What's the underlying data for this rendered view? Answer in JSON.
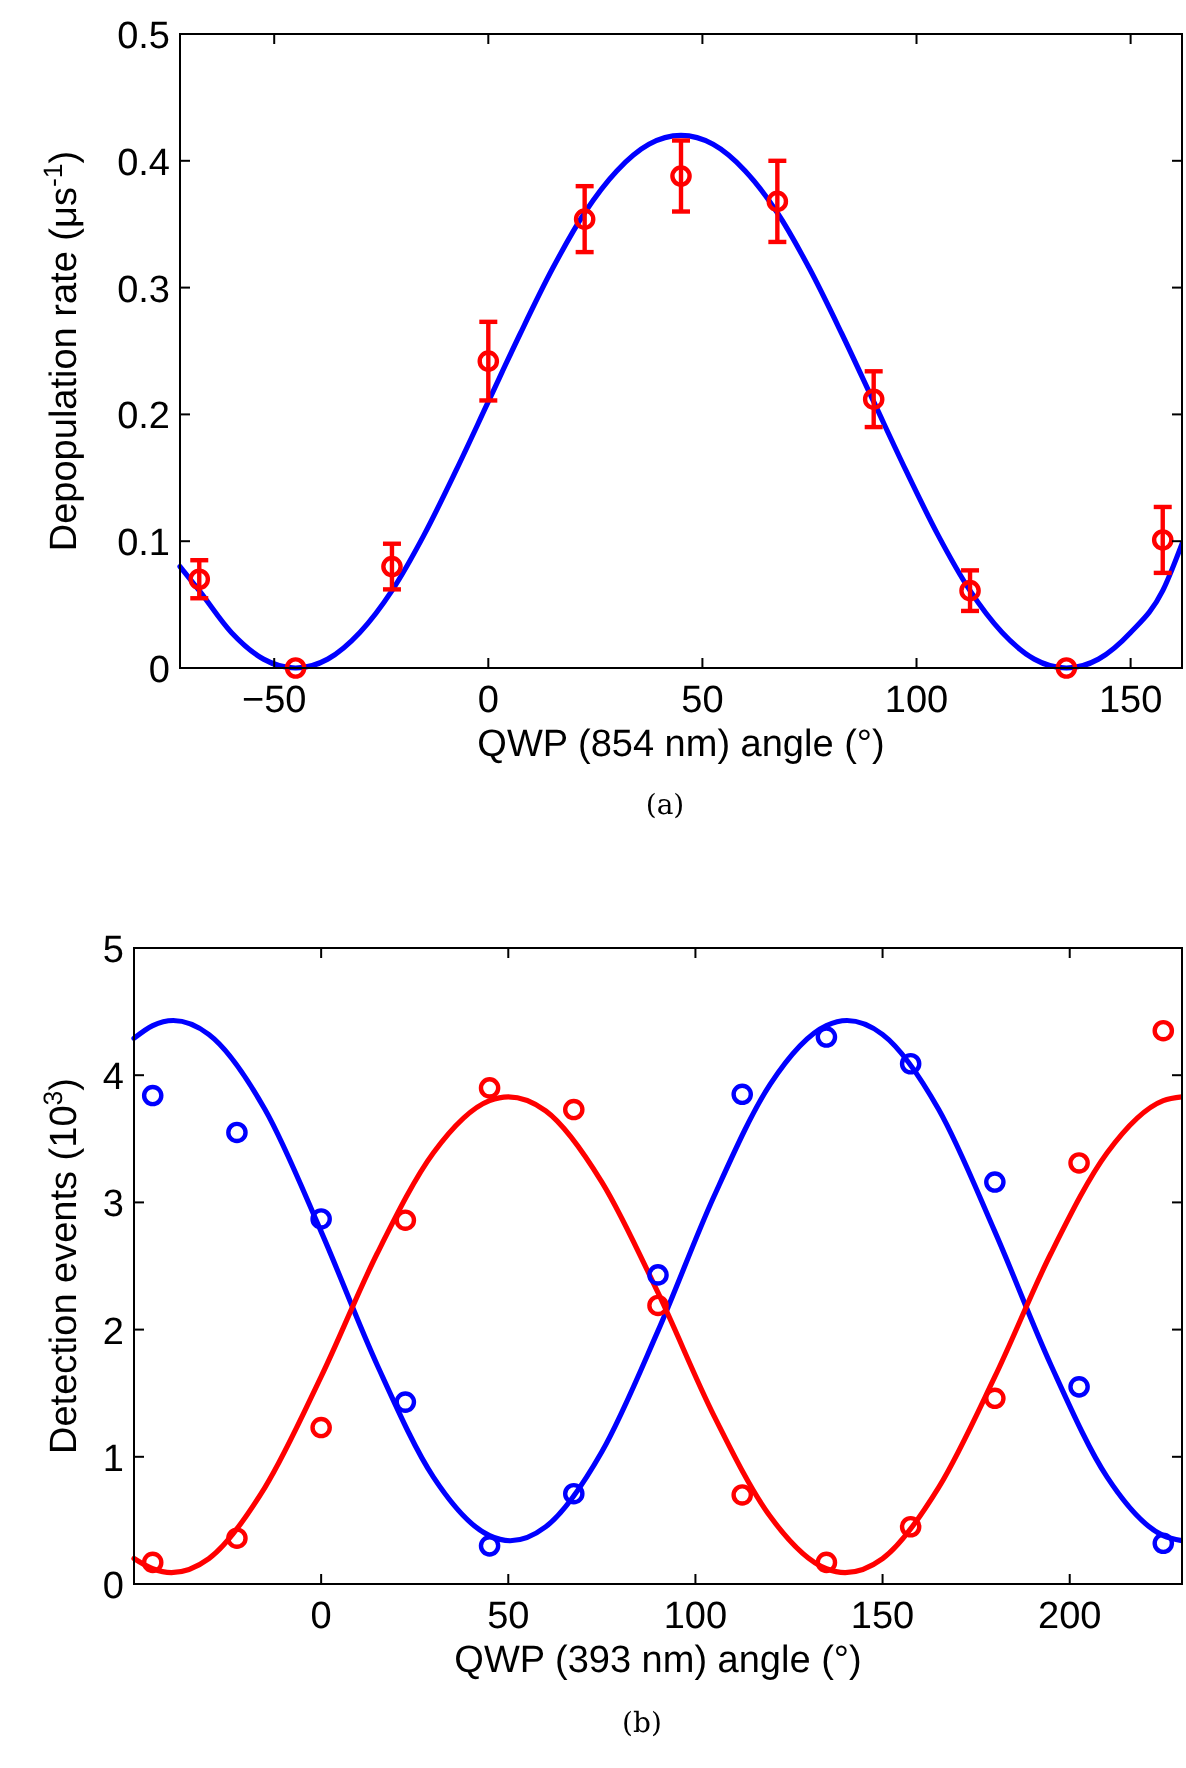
{
  "chart_data": [
    {
      "type": "scatter",
      "xlabel": "QWP (854 nm) angle (°)",
      "ylabel": "Depopulation rate (μs$^{-1}$)",
      "annotations": [
        "(a)"
      ],
      "xlim": [
        -72,
        162
      ],
      "xticks": [
        -50,
        0,
        50,
        100,
        150
      ],
      "ylim": [
        0,
        0.5
      ],
      "yticks": [
        0,
        0.1,
        0.2,
        0.3,
        0.4,
        0.5
      ],
      "series": [
        {
          "type": "line",
          "color": "#0000ff",
          "line_style": "solid",
          "marker": "none",
          "x": [
            -72,
            -67.5,
            -60,
            -52.5,
            -45,
            -37.5,
            -30,
            -22.5,
            -15,
            -7.5,
            0,
            7.5,
            15,
            22.5,
            30,
            37.5,
            45,
            52.5,
            60,
            67.5,
            75,
            82.5,
            90,
            97.5,
            105,
            112.5,
            120,
            127.5,
            135,
            142.5,
            150,
            157.5,
            162
          ],
          "values": [
            0.08,
            0.061,
            0.028,
            0.007,
            0,
            0.007,
            0.028,
            0.061,
            0.105,
            0.156,
            0.21,
            0.264,
            0.315,
            0.359,
            0.392,
            0.413,
            0.42,
            0.413,
            0.392,
            0.359,
            0.315,
            0.264,
            0.21,
            0.156,
            0.105,
            0.061,
            0.028,
            0.007,
            0,
            0.007,
            0.028,
            0.061,
            0.098
          ]
        },
        {
          "color": "#ff0000",
          "marker": "circle",
          "x": [
            -67.5,
            -45,
            -22.5,
            0,
            22.5,
            45,
            67.5,
            90,
            112.5,
            135,
            157.5
          ],
          "values": [
            0.07,
            0,
            0.08,
            0.242,
            0.354,
            0.388,
            0.368,
            0.212,
            0.061,
            0,
            0.101
          ],
          "errors": [
            0.015,
            null,
            0.018,
            0.031,
            0.026,
            0.028,
            0.032,
            0.022,
            0.016,
            null,
            0.026
          ]
        }
      ]
    },
    {
      "type": "scatter",
      "xlabel": "QWP (393 nm) angle (°)",
      "ylabel": "Detection events (10$^{3}$)",
      "annotations": [
        "(b)"
      ],
      "xlim": [
        -50,
        230
      ],
      "xticks": [
        0,
        50,
        100,
        150,
        200
      ],
      "ylim": [
        0,
        5
      ],
      "yticks": [
        0,
        1,
        2,
        3,
        4,
        5
      ],
      "series": [
        {
          "type": "line",
          "color": "#0000ff",
          "line_style": "solid",
          "marker": "none",
          "x": [
            -50,
            -45,
            -39.5,
            -30,
            -15,
            0,
            15,
            30,
            45,
            50.5,
            60,
            75,
            90,
            105,
            120,
            135,
            140.5,
            150,
            165,
            180,
            195,
            210,
            225,
            230
          ],
          "values": [
            4.29,
            4.39,
            4.43,
            4.32,
            3.73,
            2.77,
            1.72,
            0.84,
            0.38,
            0.34,
            0.45,
            1.04,
            1.99,
            3.05,
            3.93,
            4.39,
            4.43,
            4.32,
            3.73,
            2.77,
            1.72,
            0.84,
            0.38,
            0.34
          ]
        },
        {
          "type": "line",
          "color": "#ff0000",
          "line_style": "solid",
          "marker": "none",
          "x": [
            -50,
            -45,
            -40,
            -30,
            -15,
            0,
            15,
            30,
            45,
            50,
            60,
            75,
            90,
            105,
            120,
            135,
            140,
            150,
            165,
            180,
            195,
            210,
            225,
            230
          ],
          "values": [
            0.2,
            0.12,
            0.09,
            0.2,
            0.76,
            1.63,
            2.6,
            3.39,
            3.8,
            3.83,
            3.72,
            3.16,
            2.29,
            1.32,
            0.53,
            0.12,
            0.09,
            0.2,
            0.76,
            1.63,
            2.6,
            3.39,
            3.8,
            3.83
          ]
        },
        {
          "color": "#0000ff",
          "marker": "circle",
          "x": [
            -45,
            -22.5,
            0,
            22.5,
            45,
            67.5,
            90,
            112.5,
            135,
            157.5,
            180,
            202.5,
            225
          ],
          "values": [
            3.84,
            3.55,
            2.87,
            1.43,
            0.3,
            0.71,
            2.43,
            3.85,
            4.3,
            4.09,
            3.16,
            1.55,
            0.32
          ]
        },
        {
          "color": "#ff0000",
          "marker": "circle",
          "x": [
            -45,
            -22.5,
            0,
            22.5,
            45,
            67.5,
            90,
            112.5,
            135,
            157.5,
            180,
            202.5,
            225
          ],
          "values": [
            0.17,
            0.36,
            1.23,
            2.86,
            3.9,
            3.73,
            2.19,
            0.7,
            0.17,
            0.45,
            1.46,
            3.31,
            4.35
          ]
        }
      ]
    }
  ]
}
